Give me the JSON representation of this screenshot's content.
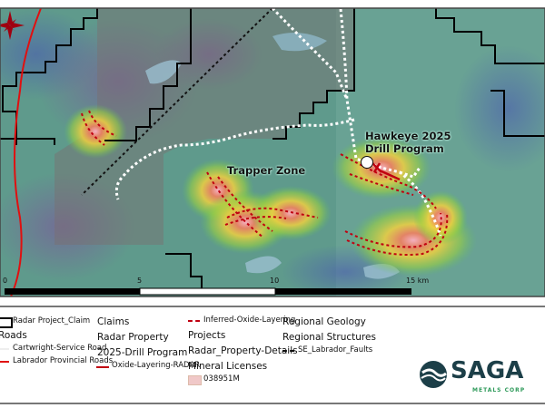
{
  "map": {
    "labels": {
      "hawkeye_line1": "Hawkeye 2025",
      "hawkeye_line2": "Drill Program",
      "trapper": "Trapper Zone"
    },
    "scale_bar": {
      "ticks": [
        "0",
        "5",
        "10",
        "15 km"
      ]
    },
    "north_arrow": "compass-star-icon",
    "colors": {
      "claim": "#000000",
      "provincial_road": "#e01010",
      "service_road": "#ffffff",
      "oxide": "#c00010",
      "fault": "#111111"
    }
  },
  "legend": {
    "col1": {
      "claim": "Radar Project_Claim",
      "roads": "Roads",
      "service_road": "Cartwright-Service Road",
      "provincial_roads": "Labrador Provincial Roads"
    },
    "col2": {
      "claims": "Claims",
      "radar_property": "Radar Property",
      "drill_program": "2025-Drill Program",
      "oxide_radar": "Oxide-Layering-RADAR"
    },
    "col3": {
      "inferred_oxide": "Inferred-Oxide-Layering",
      "projects": "Projects",
      "property_details": "Radar_Property-Details",
      "mineral_licenses": "Mineral Licenses",
      "license_id": "038951M",
      "license_color": "#f0c8c8"
    },
    "col4": {
      "regional_geology": "Regional Geology",
      "regional_structures": "Regional Structures",
      "faults": "SE_Labrador_Faults"
    }
  },
  "logo": {
    "name": "SAGA",
    "sub": "METALS CORP",
    "color": "#1c3f48",
    "accent": "#2e9a5a"
  }
}
